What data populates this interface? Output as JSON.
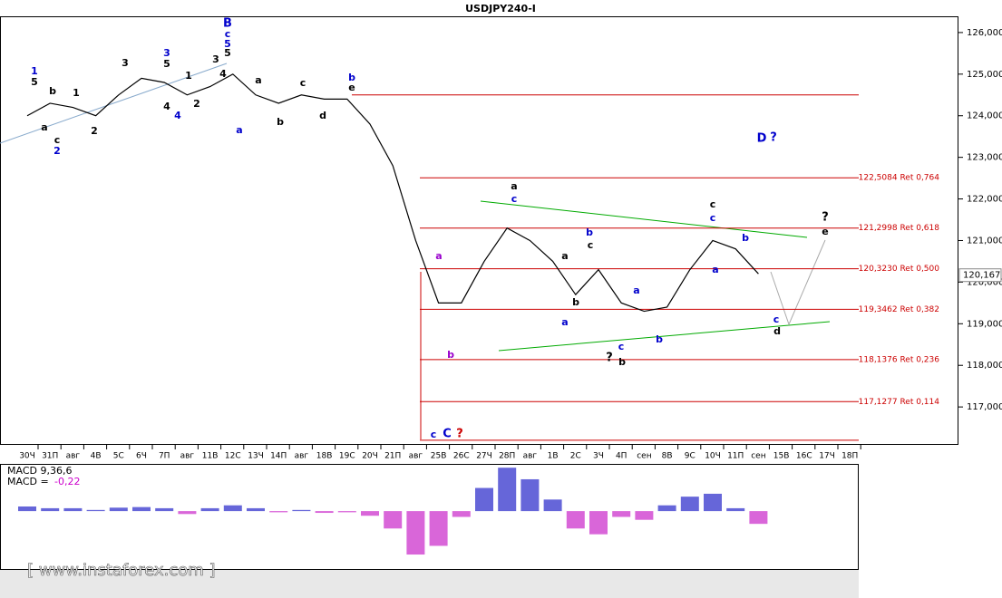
{
  "chart_data": {
    "type": "line",
    "title": "USDJPY240-I",
    "categories": [
      "30Ч",
      "31П",
      "авг",
      "4В",
      "5С",
      "6Ч",
      "7П",
      "авг",
      "11В",
      "12С",
      "13Ч",
      "14П",
      "авг",
      "18В",
      "19С",
      "20Ч",
      "21П",
      "авг",
      "25В",
      "26С",
      "27Ч",
      "28П",
      "авг",
      "1В",
      "2С",
      "3Ч",
      "4П",
      "сен",
      "8В",
      "9С",
      "10Ч",
      "11П",
      "сен",
      "15В",
      "16С",
      "17Ч",
      "18П"
    ],
    "values": [
      124.0,
      124.3,
      124.2,
      124.0,
      124.5,
      124.9,
      124.8,
      124.5,
      124.7,
      125.0,
      124.5,
      124.3,
      124.5,
      124.4,
      124.4,
      123.8,
      122.8,
      121.0,
      119.5,
      119.5,
      120.5,
      121.3,
      121.0,
      120.5,
      119.7,
      120.3,
      119.5,
      119.3,
      119.4,
      120.3,
      121.0,
      120.8,
      120.2,
      null,
      null,
      null,
      null
    ],
    "color": "#000000",
    "ylim": [
      116.11,
      126.39
    ],
    "yticks": [
      {
        "value": 117,
        "label": "117,000"
      },
      {
        "value": 118,
        "label": "118,000"
      },
      {
        "value": 119,
        "label": "119,000"
      },
      {
        "value": 120,
        "label": "120,000"
      },
      {
        "value": 121,
        "label": "121,000"
      },
      {
        "value": 122,
        "label": "122,000"
      },
      {
        "value": 123,
        "label": "123,000"
      },
      {
        "value": 124,
        "label": "124,000"
      },
      {
        "value": 125,
        "label": "125,000"
      },
      {
        "value": 126,
        "label": "126,000"
      }
    ],
    "last_price": {
      "value": 120.167,
      "label": "120,167"
    },
    "levels": [
      {
        "value": 124.5
      },
      {
        "value": 122.5084,
        "label": "122,5084 Ret 0,764"
      },
      {
        "value": 121.2998,
        "label": "121,2998 Ret 0,618"
      },
      {
        "value": 120.323,
        "label": "120,3230 Ret 0,500"
      },
      {
        "value": 119.3462,
        "label": "119,3462 Ret 0,382"
      },
      {
        "value": 118.1376,
        "label": "118,1376 Ret 0,236"
      },
      {
        "value": 117.1277,
        "label": "117,1277 Ret 0,114"
      },
      {
        "value": 116.2
      }
    ],
    "level_color": "#cc0000",
    "annotations": [
      {
        "text": "B",
        "color": "#0000cc"
      },
      {
        "text": "c",
        "color": "#0000cc"
      },
      {
        "text": "5",
        "color": "#0000cc"
      },
      {
        "text": "5",
        "color": "#000000"
      },
      {
        "text": "b",
        "color": "#0000cc"
      },
      {
        "text": "e",
        "color": "#000000"
      },
      {
        "text": "D",
        "color": "#0000cc"
      },
      {
        "text": "?",
        "color": "#0000cc"
      },
      {
        "text": "a",
        "color": "#000000"
      },
      {
        "text": "c",
        "color": "#0000cc"
      },
      {
        "text": "c",
        "color": "#000000"
      },
      {
        "text": "c",
        "color": "#0000cc"
      },
      {
        "text": "?",
        "color": "#000000"
      },
      {
        "text": "e",
        "color": "#000000"
      },
      {
        "text": "a",
        "color": "#9900cc"
      },
      {
        "text": "b",
        "color": "#9900cc"
      },
      {
        "text": "c",
        "color": "#0000cc"
      },
      {
        "text": "C",
        "color": "#0000cc"
      },
      {
        "text": "?",
        "color": "#cc0000"
      },
      {
        "text": "?",
        "color": "#000000"
      },
      {
        "text": "b",
        "color": "#000000"
      },
      {
        "text": "c",
        "color": "#0000cc"
      },
      {
        "text": "b",
        "color": "#0000cc"
      },
      {
        "text": "a",
        "color": "#0000cc"
      },
      {
        "text": "b",
        "color": "#0000cc"
      },
      {
        "text": "c",
        "color": "#000000"
      },
      {
        "text": "a",
        "color": "#000000"
      },
      {
        "text": "b",
        "color": "#000000"
      },
      {
        "text": "a",
        "color": "#0000cc"
      },
      {
        "text": "b",
        "color": "#0000cc"
      },
      {
        "text": "a",
        "color": "#0000cc"
      },
      {
        "text": "c",
        "color": "#0000cc"
      },
      {
        "text": "d",
        "color": "#000000"
      },
      {
        "text": "a",
        "color": "#0000cc"
      },
      {
        "text": "a",
        "color": "#000000"
      },
      {
        "text": "b",
        "color": "#000000"
      },
      {
        "text": "c",
        "color": "#000000"
      },
      {
        "text": "d",
        "color": "#000000"
      },
      {
        "text": "1",
        "color": "#0000cc"
      },
      {
        "text": "5",
        "color": "#000000"
      },
      {
        "text": "b",
        "color": "#000000"
      },
      {
        "text": "1",
        "color": "#000000"
      },
      {
        "text": "a",
        "color": "#000000"
      },
      {
        "text": "c",
        "color": "#000000"
      },
      {
        "text": "2",
        "color": "#0000cc"
      },
      {
        "text": "2",
        "color": "#000000"
      },
      {
        "text": "3",
        "color": "#000000"
      },
      {
        "text": "3",
        "color": "#0000cc"
      },
      {
        "text": "5",
        "color": "#000000"
      },
      {
        "text": "4",
        "color": "#000000"
      },
      {
        "text": "4",
        "color": "#0000cc"
      },
      {
        "text": "2",
        "color": "#000000"
      },
      {
        "text": "1",
        "color": "#000000"
      },
      {
        "text": "3",
        "color": "#000000"
      },
      {
        "text": "4",
        "color": "#000000"
      }
    ],
    "indicator": {
      "title": "MACD 9,36,6",
      "value_label": "MACD =",
      "value": {
        "value": -0.22,
        "label": "-0,22"
      },
      "values": [
        0.08,
        0.05,
        0.05,
        0.02,
        0.06,
        0.07,
        0.05,
        -0.05,
        0.05,
        0.1,
        0.05,
        -0.02,
        0.02,
        -0.03,
        -0.02,
        -0.08,
        -0.3,
        -0.75,
        -0.6,
        -0.1,
        0.4,
        0.75,
        0.55,
        0.2,
        -0.3,
        -0.4,
        -0.1,
        -0.15,
        0.1,
        0.25,
        0.3,
        0.05,
        -0.22,
        null,
        null,
        null,
        null
      ],
      "ylim": [
        -1.0,
        0.8
      ],
      "positive_color": "#3333cc",
      "negative_color": "#cc33cc",
      "value_color": "#cc00cc"
    },
    "watermark": "[ www.instaforex.com ]"
  }
}
